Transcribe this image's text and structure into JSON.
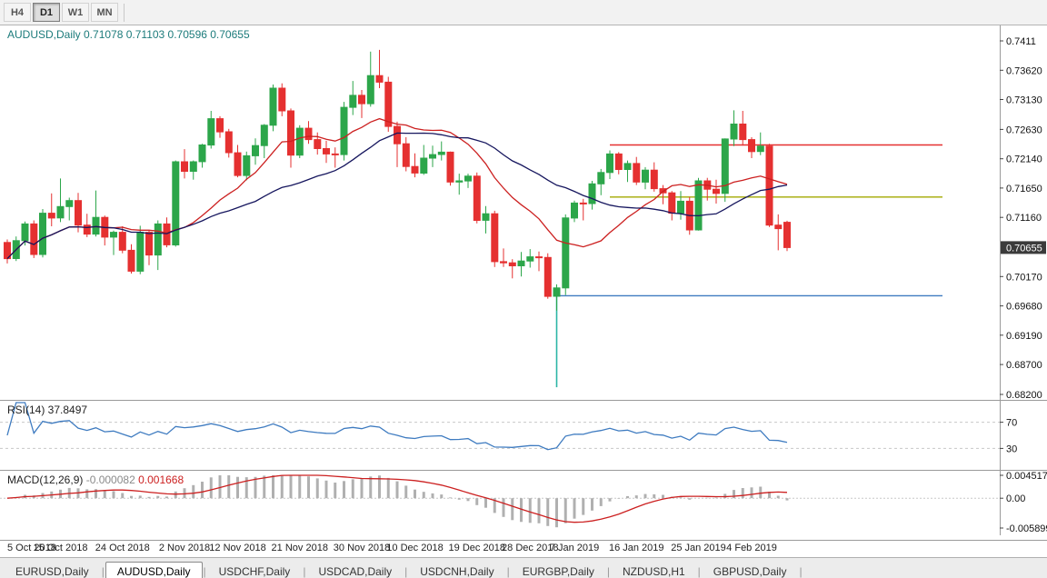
{
  "toolbar": {
    "timeframes": [
      {
        "label": "H4",
        "active": false
      },
      {
        "label": "D1",
        "active": true
      },
      {
        "label": "W1",
        "active": false
      },
      {
        "label": "MN",
        "active": false
      }
    ]
  },
  "chart_header": {
    "symbol": "AUDUSD,Daily",
    "ohlc": "0.71078 0.71103 0.70596 0.70655"
  },
  "chart_data": {
    "type": "candlestick",
    "title": "AUDUSD,Daily",
    "candles": [
      [
        0.7074,
        0.7079,
        0.7039,
        0.7047
      ],
      [
        0.7047,
        0.7084,
        0.7043,
        0.7077
      ],
      [
        0.7077,
        0.7109,
        0.7069,
        0.7105
      ],
      [
        0.7105,
        0.7111,
        0.7048,
        0.7054
      ],
      [
        0.7054,
        0.713,
        0.7049,
        0.7123
      ],
      [
        0.7123,
        0.7156,
        0.7101,
        0.7115
      ],
      [
        0.7115,
        0.7181,
        0.7108,
        0.7134
      ],
      [
        0.7134,
        0.7149,
        0.7111,
        0.7144
      ],
      [
        0.7144,
        0.7157,
        0.7091,
        0.7103
      ],
      [
        0.7103,
        0.7122,
        0.7083,
        0.7088
      ],
      [
        0.7088,
        0.7161,
        0.7084,
        0.7116
      ],
      [
        0.7116,
        0.7119,
        0.7069,
        0.7083
      ],
      [
        0.7083,
        0.7094,
        0.7053,
        0.7091
      ],
      [
        0.7091,
        0.7101,
        0.7056,
        0.7061
      ],
      [
        0.7061,
        0.7071,
        0.7022,
        0.7026
      ],
      [
        0.7026,
        0.7102,
        0.7021,
        0.7091
      ],
      [
        0.7091,
        0.7094,
        0.7036,
        0.7053
      ],
      [
        0.7053,
        0.7111,
        0.7028,
        0.7105
      ],
      [
        0.7105,
        0.7116,
        0.7066,
        0.707
      ],
      [
        0.707,
        0.7211,
        0.7067,
        0.7209
      ],
      [
        0.7209,
        0.723,
        0.7181,
        0.7193
      ],
      [
        0.7193,
        0.7211,
        0.7179,
        0.7209
      ],
      [
        0.7209,
        0.7239,
        0.7199,
        0.7237
      ],
      [
        0.7237,
        0.7294,
        0.7231,
        0.7281
      ],
      [
        0.7281,
        0.7285,
        0.7249,
        0.7259
      ],
      [
        0.7259,
        0.7264,
        0.7216,
        0.7224
      ],
      [
        0.7224,
        0.7237,
        0.7183,
        0.7186
      ],
      [
        0.7186,
        0.7226,
        0.7178,
        0.7219
      ],
      [
        0.7219,
        0.7248,
        0.7204,
        0.7236
      ],
      [
        0.7236,
        0.7272,
        0.7215,
        0.727
      ],
      [
        0.727,
        0.7338,
        0.726,
        0.7332
      ],
      [
        0.7332,
        0.734,
        0.7285,
        0.7294
      ],
      [
        0.7294,
        0.7298,
        0.7199,
        0.722
      ],
      [
        0.722,
        0.727,
        0.7215,
        0.7265
      ],
      [
        0.7265,
        0.7277,
        0.7239,
        0.7246
      ],
      [
        0.7246,
        0.7258,
        0.7221,
        0.7231
      ],
      [
        0.7231,
        0.7244,
        0.7207,
        0.7222
      ],
      [
        0.7222,
        0.7233,
        0.7199,
        0.7221
      ],
      [
        0.7221,
        0.7309,
        0.7211,
        0.73
      ],
      [
        0.73,
        0.7344,
        0.7287,
        0.732
      ],
      [
        0.732,
        0.7329,
        0.7282,
        0.7306
      ],
      [
        0.7306,
        0.7393,
        0.7301,
        0.7353
      ],
      [
        0.7353,
        0.7396,
        0.7332,
        0.7342
      ],
      [
        0.7342,
        0.7351,
        0.7259,
        0.7268
      ],
      [
        0.7268,
        0.7276,
        0.72,
        0.7239
      ],
      [
        0.7239,
        0.725,
        0.7193,
        0.7201
      ],
      [
        0.7201,
        0.7223,
        0.7183,
        0.719
      ],
      [
        0.719,
        0.7237,
        0.7187,
        0.7215
      ],
      [
        0.7215,
        0.7236,
        0.72,
        0.7221
      ],
      [
        0.7221,
        0.7243,
        0.7211,
        0.7225
      ],
      [
        0.7225,
        0.7226,
        0.7169,
        0.7175
      ],
      [
        0.7175,
        0.7189,
        0.7154,
        0.7177
      ],
      [
        0.7177,
        0.7189,
        0.7165,
        0.7185
      ],
      [
        0.7185,
        0.7191,
        0.7106,
        0.7111
      ],
      [
        0.7111,
        0.7135,
        0.7089,
        0.7122
      ],
      [
        0.7122,
        0.7127,
        0.7033,
        0.7042
      ],
      [
        0.7042,
        0.7064,
        0.7033,
        0.704
      ],
      [
        0.704,
        0.7046,
        0.7014,
        0.7035
      ],
      [
        0.7035,
        0.7058,
        0.7017,
        0.7043
      ],
      [
        0.7043,
        0.7063,
        0.7032,
        0.705
      ],
      [
        0.705,
        0.7059,
        0.7026,
        0.7049
      ],
      [
        0.7049,
        0.7056,
        0.698,
        0.6984
      ],
      [
        0.6984,
        0.7004,
        0.696,
        0.6998
      ],
      [
        0.6998,
        0.7121,
        0.6986,
        0.7115
      ],
      [
        0.7115,
        0.7144,
        0.7108,
        0.714
      ],
      [
        0.714,
        0.7147,
        0.7111,
        0.7139
      ],
      [
        0.7139,
        0.7177,
        0.7129,
        0.7172
      ],
      [
        0.7172,
        0.7197,
        0.7153,
        0.7191
      ],
      [
        0.7191,
        0.7228,
        0.718,
        0.7222
      ],
      [
        0.7222,
        0.7225,
        0.7188,
        0.7196
      ],
      [
        0.7196,
        0.7211,
        0.7175,
        0.7206
      ],
      [
        0.7206,
        0.7217,
        0.717,
        0.7175
      ],
      [
        0.7175,
        0.72,
        0.7163,
        0.7195
      ],
      [
        0.7195,
        0.7208,
        0.7159,
        0.7164
      ],
      [
        0.7164,
        0.717,
        0.7138,
        0.7157
      ],
      [
        0.7157,
        0.716,
        0.7111,
        0.7123
      ],
      [
        0.7123,
        0.716,
        0.7112,
        0.7143
      ],
      [
        0.7143,
        0.715,
        0.7087,
        0.7095
      ],
      [
        0.7095,
        0.7182,
        0.7094,
        0.7177
      ],
      [
        0.7177,
        0.7182,
        0.7144,
        0.7163
      ],
      [
        0.7163,
        0.7179,
        0.7139,
        0.7156
      ],
      [
        0.7156,
        0.7248,
        0.7142,
        0.7247
      ],
      [
        0.7247,
        0.7295,
        0.7235,
        0.7272
      ],
      [
        0.7272,
        0.7294,
        0.7236,
        0.7246
      ],
      [
        0.7246,
        0.725,
        0.7215,
        0.7226
      ],
      [
        0.7226,
        0.7258,
        0.722,
        0.7235
      ],
      [
        0.7235,
        0.7239,
        0.71,
        0.7103
      ],
      [
        0.7103,
        0.7121,
        0.7061,
        0.7097
      ],
      [
        0.71078,
        0.71103,
        0.70596,
        0.70655
      ]
    ],
    "x_axis": {
      "labels": [
        {
          "text": "5 Oct 2018",
          "index": 0
        },
        {
          "text": "15 Oct 2018",
          "index": 6
        },
        {
          "text": "24 Oct 2018",
          "index": 13
        },
        {
          "text": "2 Nov 2018",
          "index": 20
        },
        {
          "text": "12 Nov 2018",
          "index": 26
        },
        {
          "text": "21 Nov 2018",
          "index": 33
        },
        {
          "text": "30 Nov 2018",
          "index": 40
        },
        {
          "text": "10 Dec 2018",
          "index": 46
        },
        {
          "text": "19 Dec 2018",
          "index": 53
        },
        {
          "text": "28 Dec 2018",
          "index": 59
        },
        {
          "text": "7 Jan 2019",
          "index": 64
        },
        {
          "text": "16 Jan 2019",
          "index": 71
        },
        {
          "text": "25 Jan 2019",
          "index": 78
        },
        {
          "text": "4 Feb 2019",
          "index": 84
        }
      ]
    },
    "y_axis": {
      "range": [
        0.682,
        0.7411
      ],
      "labels": [
        {
          "text": "0.7411",
          "value": 0.7411
        },
        {
          "text": "0.73620",
          "value": 0.7362
        },
        {
          "text": "0.73130",
          "value": 0.7313
        },
        {
          "text": "0.72630",
          "value": 0.7263
        },
        {
          "text": "0.72140",
          "value": 0.7214
        },
        {
          "text": "0.71650",
          "value": 0.7165
        },
        {
          "text": "0.71160",
          "value": 0.7116
        },
        {
          "text": "0.70170",
          "value": 0.7017
        },
        {
          "text": "0.69680",
          "value": 0.6968
        },
        {
          "text": "0.69190",
          "value": 0.6919
        },
        {
          "text": "0.68700",
          "value": 0.687
        },
        {
          "text": "0.68200",
          "value": 0.682
        }
      ],
      "current_price": {
        "text": "0.70655",
        "value": 0.70655
      }
    },
    "moving_averages": [
      {
        "name": "ma-fast-line",
        "method": "sma",
        "period": 13,
        "color": "#cc2020"
      },
      {
        "name": "ma-slow-line",
        "method": "sma",
        "period": 26,
        "color": "#16165e"
      }
    ],
    "hlines": [
      {
        "value": 0.7237,
        "color": "#e53030",
        "from_index": 68
      },
      {
        "value": 0.715,
        "color": "#a3a800",
        "from_index": 68
      },
      {
        "value": 0.6985,
        "color": "#3e7bc0",
        "from_index": 62
      }
    ],
    "vline": {
      "index": 62,
      "from": 0.6995,
      "to": 0.6832,
      "color": "#2ab5a5"
    },
    "indicators": {
      "rsi": {
        "label": "RSI(14)",
        "value": "37.8497",
        "period": 14,
        "color": "#3e7bc0",
        "levels": [
          70,
          30
        ],
        "scale_labels": [
          {
            "text": "70",
            "value": 70
          },
          {
            "text": "30",
            "value": 30
          }
        ]
      },
      "macd": {
        "label": "MACD(12,26,9)",
        "value_main": "-0.000082",
        "value_signal": "0.001668",
        "fast": 12,
        "slow": 26,
        "signal": 9,
        "hist_color": "#b0b0b0",
        "signal_color": "#cc2020",
        "range": [
          -0.005899,
          0.004517
        ],
        "scale_labels": [
          {
            "text": "0.004517",
            "value": 0.004517
          },
          {
            "text": "0.00",
            "value": 0
          },
          {
            "text": "-0.005899",
            "value": -0.005899
          }
        ]
      }
    }
  },
  "tabbar": {
    "separator": "|",
    "tabs": [
      {
        "label": "EURUSD,Daily",
        "active": false
      },
      {
        "label": "AUDUSD,Daily",
        "active": true
      },
      {
        "label": "USDCHF,Daily",
        "active": false
      },
      {
        "label": "USDCAD,Daily",
        "active": false
      },
      {
        "label": "USDCNH,Daily",
        "active": false
      },
      {
        "label": "EURGBP,Daily",
        "active": false
      },
      {
        "label": "NZDUSD,H1",
        "active": false
      },
      {
        "label": "GBPUSD,Daily",
        "active": false
      }
    ]
  },
  "colors": {
    "up": "#2ca64a",
    "down": "#e53030",
    "background": "#ffffff",
    "scale_text": "#111111",
    "badge_bg": "#3b3b3b",
    "badge_text": "#ffffff",
    "header_text": "#1c7b7b"
  }
}
